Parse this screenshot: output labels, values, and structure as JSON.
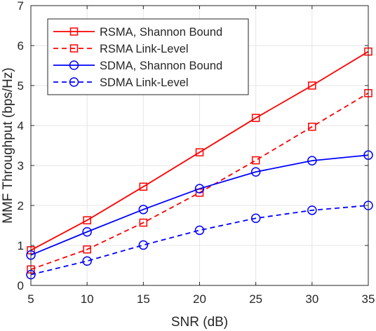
{
  "chart_data": {
    "type": "line",
    "xlabel": "SNR (dB)",
    "ylabel": "MMF Throughput (bps/Hz)",
    "xlim": [
      5,
      35
    ],
    "ylim": [
      0,
      7
    ],
    "x_ticks": [
      5,
      10,
      15,
      20,
      25,
      30,
      35
    ],
    "y_ticks": [
      0,
      1,
      2,
      3,
      4,
      5,
      6,
      7
    ],
    "grid": true,
    "legend_position": "top-left",
    "x": [
      5,
      10,
      15,
      20,
      25,
      30,
      35
    ],
    "series": [
      {
        "name": "RSMA, Shannon Bound",
        "values": [
          0.88,
          1.63,
          2.47,
          3.33,
          4.19,
          5.0,
          5.85
        ],
        "color": "#ff0000",
        "dash": "solid",
        "marker": "square"
      },
      {
        "name": "RSMA Link-Level",
        "values": [
          0.4,
          0.9,
          1.57,
          2.32,
          3.13,
          3.97,
          4.81
        ],
        "color": "#ff0000",
        "dash": "dashed",
        "marker": "square"
      },
      {
        "name": "SDMA, Shannon Bound",
        "values": [
          0.76,
          1.34,
          1.9,
          2.42,
          2.84,
          3.12,
          3.26
        ],
        "color": "#0000ff",
        "dash": "solid",
        "marker": "circle"
      },
      {
        "name": "SDMA Link-Level",
        "values": [
          0.27,
          0.61,
          1.01,
          1.38,
          1.68,
          1.88,
          2.0
        ],
        "color": "#0000ff",
        "dash": "dashed",
        "marker": "circle"
      }
    ]
  }
}
